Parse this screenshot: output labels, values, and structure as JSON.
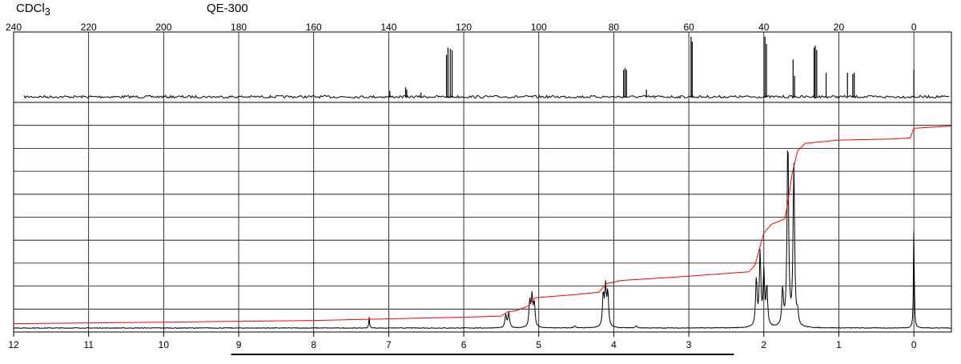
{
  "header": {
    "solvent_label": "CDCl3",
    "solvent_base": "CDCl",
    "solvent_sub": "3",
    "instrument": "QE-300"
  },
  "chart_data": [
    {
      "type": "line",
      "title": "",
      "xlabel": "",
      "ylabel": "",
      "x_reversed": true,
      "xlim": [
        240,
        -10
      ],
      "x_ticks": [
        240,
        220,
        200,
        180,
        160,
        140,
        120,
        100,
        80,
        60,
        40,
        20,
        0
      ],
      "x_tick_labels": [
        "240",
        "220",
        "200",
        "180",
        "160",
        "140",
        "120",
        "100",
        "80",
        "60",
        "40",
        "20",
        "0"
      ],
      "grid": true,
      "series": [
        {
          "peaks": [
            {
              "x": 139.7,
              "y": 0.1
            },
            {
              "x": 135.5,
              "y": 0.16
            },
            {
              "x": 135.2,
              "y": 0.12
            },
            {
              "x": 131.4,
              "y": 0.07
            },
            {
              "x": 124.6,
              "y": 0.7
            },
            {
              "x": 124.2,
              "y": 0.82
            },
            {
              "x": 123.6,
              "y": 0.8
            },
            {
              "x": 123.1,
              "y": 0.78
            },
            {
              "x": 77.4,
              "y": 0.45
            },
            {
              "x": 77.0,
              "y": 0.48
            },
            {
              "x": 76.6,
              "y": 0.45
            },
            {
              "x": 71.3,
              "y": 0.12
            },
            {
              "x": 59.4,
              "y": 1.0
            },
            {
              "x": 59.1,
              "y": 0.92
            },
            {
              "x": 39.7,
              "y": 1.0
            },
            {
              "x": 39.3,
              "y": 0.88
            },
            {
              "x": 32.2,
              "y": 0.62
            },
            {
              "x": 31.8,
              "y": 0.35
            },
            {
              "x": 26.6,
              "y": 0.82
            },
            {
              "x": 26.3,
              "y": 0.85
            },
            {
              "x": 25.9,
              "y": 0.78
            },
            {
              "x": 23.4,
              "y": 0.4
            },
            {
              "x": 17.7,
              "y": 0.4
            },
            {
              "x": 16.3,
              "y": 0.38
            },
            {
              "x": 15.9,
              "y": 0.4
            },
            {
              "x": 0.0,
              "y": 0.45
            }
          ]
        }
      ]
    },
    {
      "type": "line",
      "title": "",
      "xlabel": "",
      "ylabel": "",
      "x_reversed": true,
      "xlim": [
        12,
        -0.5
      ],
      "x_ticks": [
        12,
        11,
        10,
        9,
        8,
        7,
        6,
        5,
        4,
        3,
        2,
        1,
        0
      ],
      "x_tick_labels": [
        "12",
        "11",
        "10",
        "9",
        "8",
        "7",
        "6",
        "5",
        "4",
        "3",
        "2",
        "1",
        "0"
      ],
      "ylim": [
        0,
        1
      ],
      "grid": true,
      "series": [
        {
          "color": "#000000",
          "peaks": [
            {
              "x": 7.26,
              "y": 0.05
            },
            {
              "x": 5.44,
              "y": 0.06
            },
            {
              "x": 5.4,
              "y": 0.07
            },
            {
              "x": 5.12,
              "y": 0.12
            },
            {
              "x": 5.09,
              "y": 0.14
            },
            {
              "x": 5.06,
              "y": 0.11
            },
            {
              "x": 4.52,
              "y": 0.01
            },
            {
              "x": 4.14,
              "y": 0.15
            },
            {
              "x": 4.11,
              "y": 0.18
            },
            {
              "x": 4.08,
              "y": 0.16
            },
            {
              "x": 3.7,
              "y": 0.01
            },
            {
              "x": 2.1,
              "y": 0.22
            },
            {
              "x": 2.05,
              "y": 0.34
            },
            {
              "x": 2.0,
              "y": 0.25
            },
            {
              "x": 1.96,
              "y": 0.18
            },
            {
              "x": 1.75,
              "y": 0.17
            },
            {
              "x": 1.68,
              "y": 0.89
            },
            {
              "x": 1.6,
              "y": 0.75
            },
            {
              "x": 1.55,
              "y": 0.06
            },
            {
              "x": 0.0,
              "y": 0.48
            }
          ]
        },
        {
          "color": "#ff0000",
          "points": [
            [
              12.0,
              0.02
            ],
            [
              10.0,
              0.027
            ],
            [
              8.0,
              0.035
            ],
            [
              6.0,
              0.05
            ],
            [
              5.5,
              0.055
            ],
            [
              5.42,
              0.075
            ],
            [
              5.3,
              0.08
            ],
            [
              5.15,
              0.1
            ],
            [
              5.05,
              0.14
            ],
            [
              4.5,
              0.155
            ],
            [
              4.2,
              0.165
            ],
            [
              4.1,
              0.205
            ],
            [
              3.9,
              0.22
            ],
            [
              3.0,
              0.24
            ],
            [
              2.2,
              0.26
            ],
            [
              2.12,
              0.29
            ],
            [
              2.0,
              0.44
            ],
            [
              1.9,
              0.48
            ],
            [
              1.72,
              0.505
            ],
            [
              1.68,
              0.58
            ],
            [
              1.62,
              0.72
            ],
            [
              1.55,
              0.82
            ],
            [
              1.45,
              0.855
            ],
            [
              1.0,
              0.87
            ],
            [
              0.3,
              0.875
            ],
            [
              0.05,
              0.88
            ],
            [
              0.0,
              0.925
            ],
            [
              -0.5,
              0.935
            ]
          ]
        }
      ]
    }
  ],
  "integration_bar": {
    "from": 9.1,
    "to": 2.4
  }
}
